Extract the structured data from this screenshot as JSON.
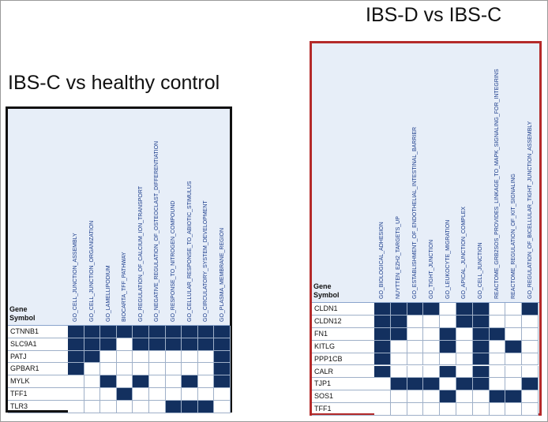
{
  "left_panel": {
    "title": "IBS-C vs healthy control",
    "symbol_header": [
      "Gene",
      "Symbol"
    ],
    "columns": [
      "GO_CELL_JUNCTION_ASSEMBLY",
      "GO_CELL_JUNCTION_ORGANIZATION",
      "GO_LAMELLIPODIUM",
      "BIOCARTA_TFF_PATHWAY",
      "GO_REGULATION_OF_CALCIUM_ION_TRANSPORT",
      "GO_NEGATIVE_REGULATION_OF_OSTEOCLAST_DIFFERENTIATION",
      "GO_RESPONSE_TO_NITROGEN_COMPOUND",
      "GO_CELLULAR_RESPONSE_TO_ABIOTIC_STIMULUS",
      "GO_CIRCULATORY_SYSTEM_DEVELOPMENT",
      "GO_PLASMA_MEMBRANE_REGION"
    ],
    "rows": [
      {
        "gene": "CTNNB1",
        "cells": [
          1,
          1,
          1,
          1,
          1,
          1,
          1,
          1,
          1,
          1
        ]
      },
      {
        "gene": "SLC9A1",
        "cells": [
          1,
          1,
          1,
          0,
          1,
          1,
          1,
          1,
          1,
          1
        ]
      },
      {
        "gene": "PATJ",
        "cells": [
          1,
          1,
          0,
          0,
          0,
          0,
          0,
          0,
          0,
          1
        ]
      },
      {
        "gene": "GPBAR1",
        "cells": [
          1,
          0,
          0,
          0,
          0,
          0,
          0,
          0,
          0,
          1
        ]
      },
      {
        "gene": "MYLK",
        "cells": [
          0,
          0,
          1,
          0,
          1,
          0,
          0,
          1,
          0,
          1
        ]
      },
      {
        "gene": "TFF1",
        "cells": [
          0,
          0,
          0,
          1,
          0,
          0,
          0,
          0,
          0,
          0
        ]
      },
      {
        "gene": "TLR3",
        "cells": [
          0,
          0,
          0,
          0,
          0,
          0,
          1,
          1,
          1,
          0
        ]
      }
    ]
  },
  "right_panel": {
    "title": "IBS-D vs IBS-C",
    "symbol_header": [
      "Gene",
      "Symbol"
    ],
    "columns": [
      "GO_BIOLOGICAL_ADHESION",
      "NUYTTEN_EZH2_TARGETS_UP",
      "GO_ESTABLISHMENT_OF_ENDOTHELIAL_INTESTINAL_BARRIER",
      "GO_TIGHT_JUNCTION",
      "GO_LEUKOCYTE_MIGRATION",
      "GO_APICAL_JUNCTION_COMPLEX",
      "GO_CELL_JUNCTION",
      "REACTOME_GRB2SOS_PROVIDES_LINKAGE_TO_MAPK_SIGNALING_FOR_INTEGRINS",
      "REACTOME_REGULATION_OF_KIT_SIGNALING",
      "GO_REGULATION_OF_BICELLULAR_TIGHT_JUNCTION_ASSEMBLY"
    ],
    "rows": [
      {
        "gene": "CLDN1",
        "cells": [
          1,
          1,
          1,
          1,
          0,
          1,
          1,
          0,
          0,
          1
        ]
      },
      {
        "gene": "CLDN12",
        "cells": [
          1,
          1,
          0,
          0,
          0,
          1,
          1,
          0,
          0,
          0
        ]
      },
      {
        "gene": "FN1",
        "cells": [
          1,
          1,
          0,
          0,
          1,
          0,
          1,
          1,
          0,
          0
        ]
      },
      {
        "gene": "KITLG",
        "cells": [
          1,
          0,
          0,
          0,
          1,
          0,
          1,
          0,
          1,
          0
        ]
      },
      {
        "gene": "PPP1CB",
        "cells": [
          1,
          0,
          0,
          0,
          0,
          0,
          1,
          0,
          0,
          0
        ]
      },
      {
        "gene": "CALR",
        "cells": [
          1,
          0,
          0,
          0,
          1,
          0,
          1,
          0,
          0,
          0
        ]
      },
      {
        "gene": "TJP1",
        "cells": [
          0,
          1,
          1,
          1,
          0,
          1,
          1,
          0,
          0,
          1
        ]
      },
      {
        "gene": "SOS1",
        "cells": [
          0,
          0,
          0,
          0,
          1,
          0,
          0,
          1,
          1,
          0
        ]
      },
      {
        "gene": "TFF1",
        "cells": [
          0,
          0,
          0,
          0,
          0,
          0,
          0,
          0,
          0,
          0
        ]
      }
    ]
  }
}
